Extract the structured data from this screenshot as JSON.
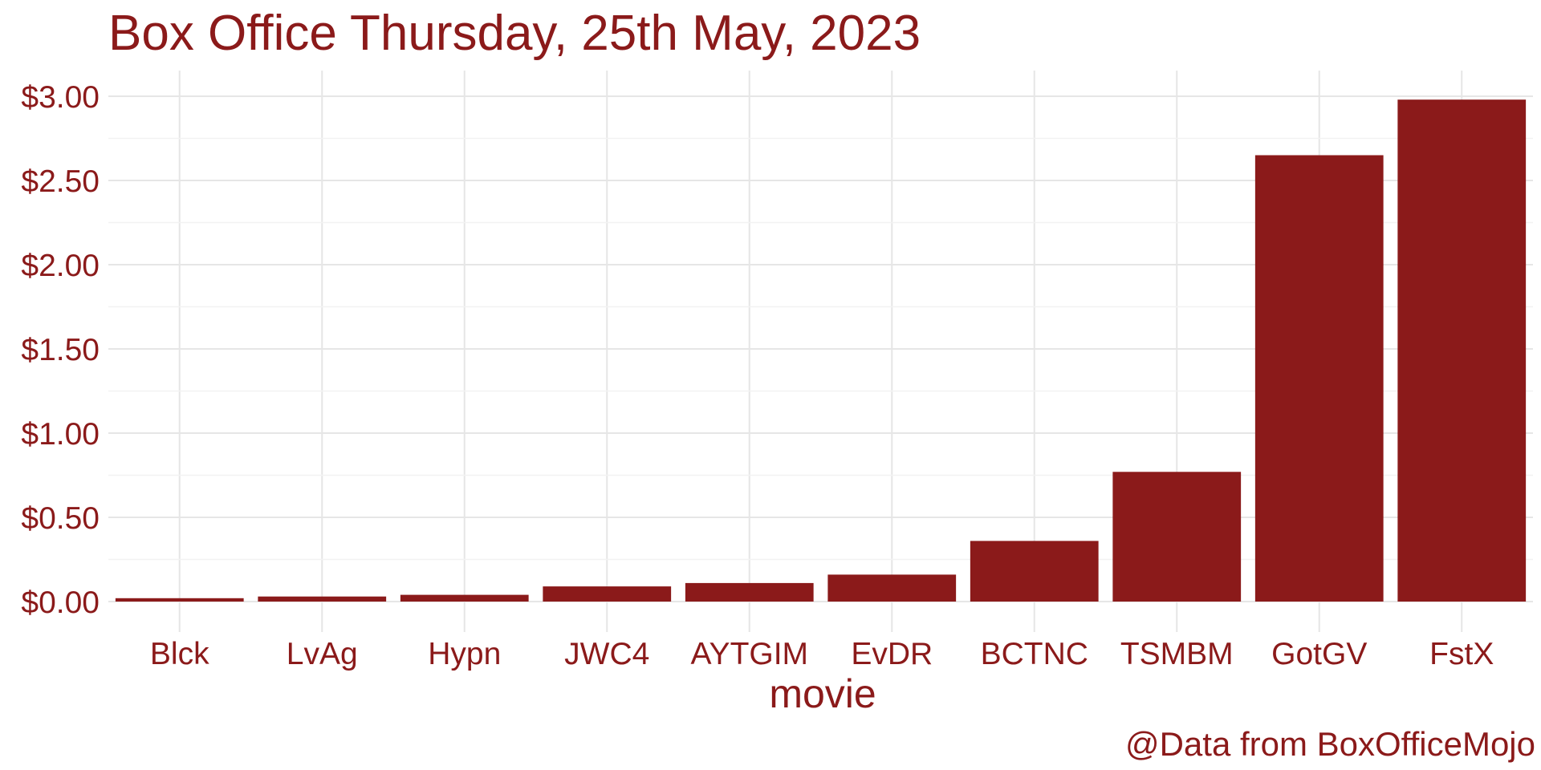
{
  "chart_data": {
    "type": "bar",
    "title": "Box Office Thursday, 25th May, 2023",
    "xlabel": "movie",
    "ylabel": "",
    "caption": "@Data from BoxOfficeMojo",
    "categories": [
      "Blck",
      "LvAg",
      "Hypn",
      "JWC4",
      "AYTGIM",
      "EvDR",
      "BCTNC",
      "TSMBM",
      "GotGV",
      "FstX"
    ],
    "values": [
      0.02,
      0.03,
      0.04,
      0.09,
      0.11,
      0.16,
      0.36,
      0.77,
      2.65,
      2.98
    ],
    "ylim": [
      0,
      3.0
    ],
    "yticks": [
      0,
      0.5,
      1.0,
      1.5,
      2.0,
      2.5,
      3.0
    ],
    "ytick_labels": [
      "$0.00",
      "$0.50",
      "$1.00",
      "$1.50",
      "$2.00",
      "$2.50",
      "$3.00"
    ],
    "grid": true,
    "legend": "none",
    "bar_color": "#8b1a1a"
  }
}
